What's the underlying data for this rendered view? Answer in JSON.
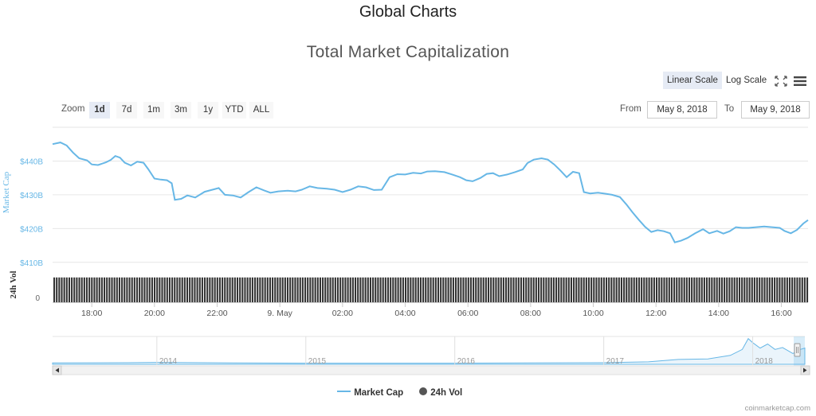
{
  "page_title": "Global Charts",
  "chart_title": "Total Market Capitalization",
  "scale": {
    "linear_label": "Linear Scale",
    "log_label": "Log Scale",
    "active": "linear"
  },
  "toolbar_icons": [
    "fullscreen-icon",
    "menu-icon"
  ],
  "zoom": {
    "label": "Zoom",
    "buttons": [
      "1d",
      "7d",
      "1m",
      "3m",
      "1y",
      "YTD",
      "ALL"
    ],
    "active": "1d"
  },
  "range": {
    "from_label": "From",
    "from_value": "May 8, 2018",
    "to_label": "To",
    "to_value": "May 9, 2018"
  },
  "legend": {
    "market_cap": "Market Cap",
    "volume": "24h Vol"
  },
  "credit": "coinmarketcap.com",
  "colors": {
    "market_cap_line": "#67b7e6",
    "volume_bar": "#333333",
    "axis_text": "#666666",
    "active_button": "#e6ebf5",
    "navigator_fill": "#eaf4fb"
  },
  "chart_data": {
    "type": "line",
    "ylabel": "Market Cap",
    "ylabel_volume": "24h Vol",
    "y_ticks": [
      "$410B",
      "$420B",
      "$430B",
      "$440B"
    ],
    "y_tick_values": [
      410,
      420,
      430,
      440
    ],
    "volume_ticks": [
      "0"
    ],
    "x_ticks": [
      "18:00",
      "20:00",
      "22:00",
      "9. May",
      "02:00",
      "04:00",
      "06:00",
      "08:00",
      "10:00",
      "12:00",
      "14:00",
      "16:00"
    ],
    "x_tick_hours": [
      18,
      20,
      22,
      24,
      26,
      28,
      30,
      32,
      34,
      36,
      38,
      40
    ],
    "x_unit": "hours since May 8, 2018 00:00",
    "x_range": [
      16.75,
      40.85
    ],
    "y_range_billions": [
      409,
      450
    ],
    "series": [
      {
        "name": "Market Cap",
        "unit": "USD billions",
        "points": [
          [
            16.75,
            445.0
          ],
          [
            17.0,
            445.5
          ],
          [
            17.2,
            444.6
          ],
          [
            17.4,
            442.5
          ],
          [
            17.6,
            440.8
          ],
          [
            17.85,
            440.2
          ],
          [
            18.0,
            439.0
          ],
          [
            18.2,
            438.8
          ],
          [
            18.45,
            439.6
          ],
          [
            18.6,
            440.3
          ],
          [
            18.75,
            441.5
          ],
          [
            18.9,
            441.0
          ],
          [
            19.05,
            439.5
          ],
          [
            19.25,
            438.7
          ],
          [
            19.45,
            439.8
          ],
          [
            19.65,
            439.5
          ],
          [
            19.8,
            437.6
          ],
          [
            20.0,
            434.8
          ],
          [
            20.2,
            434.5
          ],
          [
            20.4,
            434.3
          ],
          [
            20.55,
            433.4
          ],
          [
            20.65,
            428.5
          ],
          [
            20.85,
            428.8
          ],
          [
            21.05,
            429.8
          ],
          [
            21.3,
            429.2
          ],
          [
            21.6,
            430.9
          ],
          [
            21.85,
            431.5
          ],
          [
            22.05,
            432.0
          ],
          [
            22.25,
            430.0
          ],
          [
            22.5,
            429.8
          ],
          [
            22.75,
            429.2
          ],
          [
            23.0,
            430.8
          ],
          [
            23.25,
            432.2
          ],
          [
            23.5,
            431.3
          ],
          [
            23.7,
            430.6
          ],
          [
            23.95,
            431.0
          ],
          [
            24.25,
            431.2
          ],
          [
            24.5,
            431.0
          ],
          [
            24.7,
            431.5
          ],
          [
            24.95,
            432.5
          ],
          [
            25.2,
            432.0
          ],
          [
            25.5,
            431.8
          ],
          [
            25.75,
            431.5
          ],
          [
            26.0,
            430.8
          ],
          [
            26.25,
            431.5
          ],
          [
            26.5,
            432.5
          ],
          [
            26.75,
            432.2
          ],
          [
            27.0,
            431.4
          ],
          [
            27.25,
            431.5
          ],
          [
            27.5,
            435.2
          ],
          [
            27.75,
            436.1
          ],
          [
            28.0,
            436.0
          ],
          [
            28.25,
            436.5
          ],
          [
            28.5,
            436.3
          ],
          [
            28.7,
            436.9
          ],
          [
            28.95,
            437.0
          ],
          [
            29.25,
            436.7
          ],
          [
            29.5,
            436.0
          ],
          [
            29.75,
            435.2
          ],
          [
            29.95,
            434.3
          ],
          [
            30.15,
            434.0
          ],
          [
            30.4,
            435.0
          ],
          [
            30.6,
            436.2
          ],
          [
            30.8,
            436.4
          ],
          [
            31.0,
            435.5
          ],
          [
            31.25,
            436.0
          ],
          [
            31.5,
            436.7
          ],
          [
            31.75,
            437.5
          ],
          [
            31.9,
            439.4
          ],
          [
            32.1,
            440.4
          ],
          [
            32.35,
            440.8
          ],
          [
            32.55,
            440.4
          ],
          [
            32.75,
            439.0
          ],
          [
            32.95,
            437.2
          ],
          [
            33.15,
            435.2
          ],
          [
            33.35,
            436.8
          ],
          [
            33.55,
            436.4
          ],
          [
            33.7,
            430.8
          ],
          [
            33.9,
            430.4
          ],
          [
            34.15,
            430.6
          ],
          [
            34.4,
            430.3
          ],
          [
            34.6,
            430.0
          ],
          [
            34.85,
            429.3
          ],
          [
            35.05,
            427.2
          ],
          [
            35.25,
            424.8
          ],
          [
            35.45,
            422.6
          ],
          [
            35.65,
            420.5
          ],
          [
            35.85,
            419.0
          ],
          [
            36.05,
            419.5
          ],
          [
            36.25,
            419.2
          ],
          [
            36.45,
            418.6
          ],
          [
            36.6,
            415.9
          ],
          [
            36.8,
            416.4
          ],
          [
            37.0,
            417.2
          ],
          [
            37.25,
            418.6
          ],
          [
            37.5,
            419.8
          ],
          [
            37.7,
            418.6
          ],
          [
            37.95,
            419.3
          ],
          [
            38.15,
            418.5
          ],
          [
            38.35,
            419.2
          ],
          [
            38.55,
            420.4
          ],
          [
            38.75,
            420.2
          ],
          [
            38.95,
            420.2
          ],
          [
            39.2,
            420.4
          ],
          [
            39.45,
            420.6
          ],
          [
            39.7,
            420.4
          ],
          [
            39.95,
            420.2
          ],
          [
            40.1,
            419.3
          ],
          [
            40.3,
            418.6
          ],
          [
            40.5,
            419.6
          ],
          [
            40.7,
            421.5
          ],
          [
            40.85,
            422.5
          ]
        ]
      },
      {
        "name": "24h Vol",
        "unit": "relative to panel max",
        "level": 0.78
      }
    ],
    "navigator": {
      "year_labels": [
        "2014",
        "2015",
        "2016",
        "2017",
        "2018"
      ],
      "year_positions": [
        2014,
        2015,
        2016,
        2017,
        2018
      ],
      "x_range": [
        2013.3,
        2018.35
      ],
      "profile": [
        [
          2013.3,
          0.05
        ],
        [
          2013.8,
          0.06
        ],
        [
          2014.0,
          0.07
        ],
        [
          2014.5,
          0.05
        ],
        [
          2015.0,
          0.04
        ],
        [
          2015.5,
          0.04
        ],
        [
          2016.0,
          0.04
        ],
        [
          2016.5,
          0.05
        ],
        [
          2017.0,
          0.06
        ],
        [
          2017.3,
          0.09
        ],
        [
          2017.5,
          0.18
        ],
        [
          2017.7,
          0.2
        ],
        [
          2017.85,
          0.33
        ],
        [
          2017.93,
          0.55
        ],
        [
          2017.97,
          0.95
        ],
        [
          2018.0,
          0.8
        ],
        [
          2018.05,
          0.6
        ],
        [
          2018.1,
          0.75
        ],
        [
          2018.15,
          0.55
        ],
        [
          2018.2,
          0.62
        ],
        [
          2018.27,
          0.4
        ],
        [
          2018.32,
          0.55
        ],
        [
          2018.35,
          0.6
        ]
      ]
    }
  }
}
